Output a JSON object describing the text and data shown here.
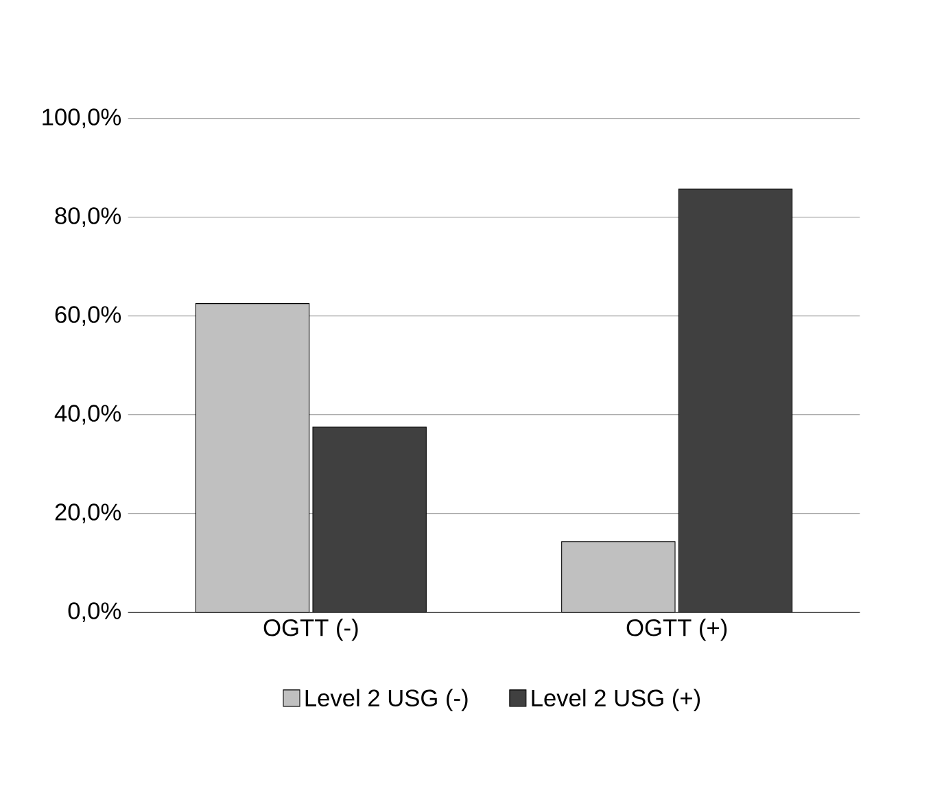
{
  "chart_data": {
    "type": "bar",
    "categories": [
      "OGTT (-)",
      "OGTT (+)"
    ],
    "series": [
      {
        "name": "Level 2 USG (-)",
        "color": "#c0c0c0",
        "values": [
          62.5,
          14.3
        ]
      },
      {
        "name": "Level 2 USG (+)",
        "color": "#404040",
        "values": [
          37.5,
          85.7
        ]
      }
    ],
    "ylim": [
      0,
      100
    ],
    "yticks": [
      {
        "value": 0,
        "label": "0,0%"
      },
      {
        "value": 20,
        "label": "20,0%"
      },
      {
        "value": 40,
        "label": "40,0%"
      },
      {
        "value": 60,
        "label": "60,0%"
      },
      {
        "value": 80,
        "label": "80,0%"
      },
      {
        "value": 100,
        "label": "100,0%"
      }
    ],
    "grid": "y",
    "legend": "bottom"
  }
}
